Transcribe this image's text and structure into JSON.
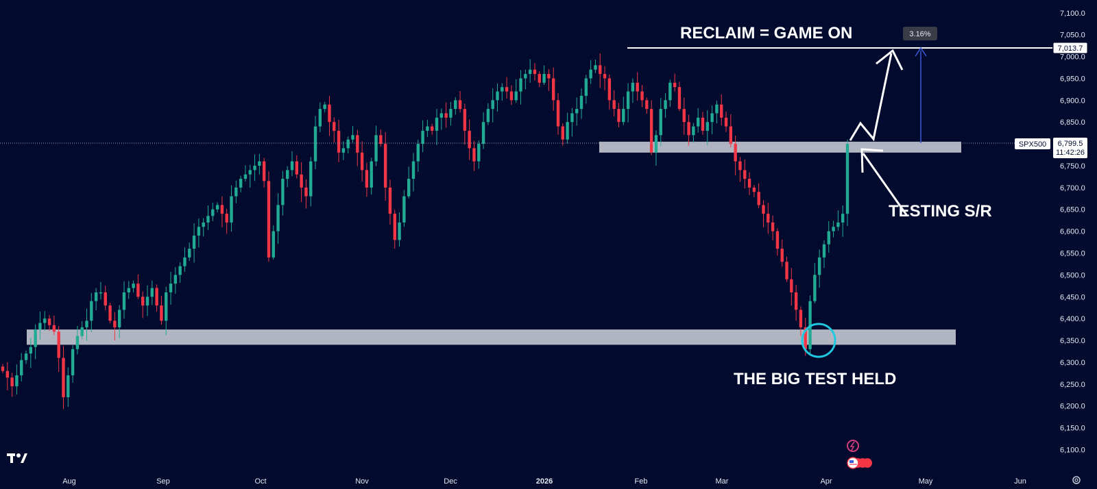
{
  "colors": {
    "background": "#020b2d",
    "up": "#22ab94",
    "down": "#f23645",
    "zone": "#c9ccd6",
    "annotation": "#ffffff",
    "measure": "#3b5bdb",
    "circle": "#1fc7e0"
  },
  "annotations": {
    "reclaim": "RECLAIM = GAME ON",
    "testing": "TESTING S/R",
    "held": "THE BIG TEST HELD",
    "measure_pct": "3.16%"
  },
  "price_label": {
    "ticker": "SPX500",
    "price": "6,799.5",
    "countdown": "11:42:26",
    "level_label": "7,013.7"
  },
  "icons": {
    "logo": "tradingview-logo-icon",
    "settings": "gear-icon",
    "events": [
      "lightning-event-icon",
      "us-flag-event-icon"
    ]
  },
  "chart_data": {
    "type": "candlestick",
    "symbol": "SPX500",
    "timeframe": "daily",
    "ylim": [
      6060,
      7120
    ],
    "y_ticks": [
      "7,100.0",
      "7,050.0",
      "7,000.0",
      "6,950.0",
      "6,900.0",
      "6,850.0",
      "6,800.0",
      "6,750.0",
      "6,700.0",
      "6,650.0",
      "6,600.0",
      "6,550.0",
      "6,500.0",
      "6,450.0",
      "6,400.0",
      "6,350.0",
      "6,300.0",
      "6,250.0",
      "6,200.0",
      "6,150.0",
      "6,100.0"
    ],
    "x_ticks": [
      "Aug",
      "Sep",
      "Oct",
      "Nov",
      "Dec",
      "2026",
      "Feb",
      "Mar",
      "Apr",
      "May",
      "Jun"
    ],
    "zones": [
      {
        "name": "support",
        "low": 6340,
        "high": 6375
      },
      {
        "name": "resistance",
        "low": 6780,
        "high": 6805
      }
    ],
    "levels": [
      {
        "name": "reclaim",
        "value": 7013.7
      }
    ],
    "current_price": 6799.5,
    "closes": [
      6280,
      6265,
      6245,
      6270,
      6305,
      6320,
      6335,
      6375,
      6390,
      6400,
      6385,
      6370,
      6310,
      6220,
      6270,
      6330,
      6360,
      6380,
      6395,
      6440,
      6460,
      6460,
      6430,
      6395,
      6380,
      6420,
      6460,
      6470,
      6480,
      6450,
      6430,
      6450,
      6470,
      6430,
      6395,
      6460,
      6480,
      6500,
      6520,
      6540,
      6560,
      6590,
      6610,
      6620,
      6635,
      6650,
      6660,
      6640,
      6620,
      6680,
      6700,
      6720,
      6730,
      6740,
      6750,
      6760,
      6715,
      6540,
      6600,
      6660,
      6720,
      6740,
      6760,
      6730,
      6700,
      6680,
      6760,
      6840,
      6880,
      6890,
      6850,
      6830,
      6780,
      6790,
      6810,
      6820,
      6780,
      6740,
      6700,
      6760,
      6820,
      6800,
      6700,
      6640,
      6580,
      6620,
      6680,
      6720,
      6760,
      6800,
      6830,
      6840,
      6830,
      6860,
      6870,
      6860,
      6880,
      6900,
      6880,
      6830,
      6790,
      6760,
      6800,
      6850,
      6880,
      6900,
      6920,
      6930,
      6920,
      6900,
      6920,
      6950,
      6960,
      6970,
      6960,
      6940,
      6960,
      6950,
      6900,
      6840,
      6810,
      6850,
      6870,
      6880,
      6910,
      6950,
      6970,
      6980,
      6960,
      6950,
      6900,
      6880,
      6850,
      6880,
      6920,
      6940,
      6920,
      6900,
      6880,
      6780,
      6820,
      6880,
      6900,
      6940,
      6930,
      6880,
      6850,
      6820,
      6840,
      6860,
      6830,
      6850,
      6870,
      6890,
      6860,
      6840,
      6800,
      6760,
      6740,
      6720,
      6700,
      6690,
      6660,
      6640,
      6620,
      6600,
      6560,
      6530,
      6490,
      6460,
      6420,
      6380,
      6330,
      6440,
      6500,
      6540,
      6570,
      6600,
      6610,
      6620,
      6640,
      6800
    ]
  }
}
